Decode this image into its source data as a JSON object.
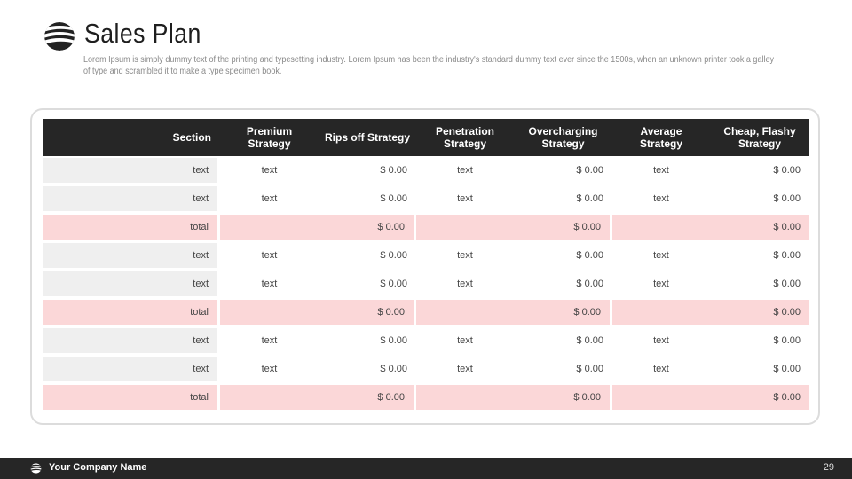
{
  "header": {
    "title": "Sales Plan",
    "subtitle": "Lorem Ipsum is simply dummy text of the printing and typesetting industry. Lorem Ipsum has been the industry's standard dummy text ever since the 1500s, when an unknown printer took a galley of type and scrambled it to make a type specimen book.",
    "logo_icon": "striped-globe-icon"
  },
  "table": {
    "columns": [
      "Section",
      "Premium Strategy",
      "Rips off Strategy",
      "Penetration Strategy",
      "Overcharging Strategy",
      "Average Strategy",
      "Cheap, Flashy Strategy"
    ],
    "groups": [
      {
        "rows": [
          [
            "text",
            "text",
            "$ 0.00",
            "text",
            "$ 0.00",
            "text",
            "$ 0.00"
          ],
          [
            "text",
            "text",
            "$ 0.00",
            "text",
            "$ 0.00",
            "text",
            "$ 0.00"
          ]
        ],
        "total": [
          "total",
          "",
          "$ 0.00",
          "",
          "$ 0.00",
          "",
          "$ 0.00"
        ]
      },
      {
        "rows": [
          [
            "text",
            "text",
            "$ 0.00",
            "text",
            "$ 0.00",
            "text",
            "$ 0.00"
          ],
          [
            "text",
            "text",
            "$ 0.00",
            "text",
            "$ 0.00",
            "text",
            "$ 0.00"
          ]
        ],
        "total": [
          "total",
          "",
          "$ 0.00",
          "",
          "$ 0.00",
          "",
          "$ 0.00"
        ]
      },
      {
        "rows": [
          [
            "text",
            "text",
            "$ 0.00",
            "text",
            "$ 0.00",
            "text",
            "$ 0.00"
          ],
          [
            "text",
            "text",
            "$ 0.00",
            "text",
            "$ 0.00",
            "text",
            "$ 0.00"
          ]
        ],
        "total": [
          "total",
          "",
          "$ 0.00",
          "",
          "$ 0.00",
          "",
          "$ 0.00"
        ]
      }
    ]
  },
  "footer": {
    "company": "Your Company Name",
    "page_number": "29",
    "logo_icon": "striped-globe-icon"
  },
  "colors": {
    "header_bg": "#262626",
    "total_row_bg": "#fbd7d8",
    "section_cell_bg": "#efefef",
    "footer_bg": "#262626"
  }
}
